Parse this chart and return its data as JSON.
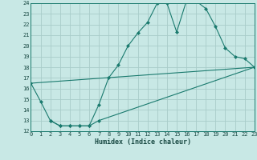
{
  "xlabel": "Humidex (Indice chaleur)",
  "bg_color": "#c8e8e5",
  "grid_color": "#a8ccc9",
  "line_color": "#1a7a6e",
  "spine_color": "#1a7a6e",
  "xlim": [
    0,
    23
  ],
  "ylim": [
    12,
    24
  ],
  "yticks": [
    12,
    13,
    14,
    15,
    16,
    17,
    18,
    19,
    20,
    21,
    22,
    23,
    24
  ],
  "xticks": [
    0,
    1,
    2,
    3,
    4,
    5,
    6,
    7,
    8,
    9,
    10,
    11,
    12,
    13,
    14,
    15,
    16,
    17,
    18,
    19,
    20,
    21,
    22,
    23
  ],
  "curve1_x": [
    0,
    1,
    2,
    3,
    4,
    5,
    6,
    7,
    8,
    9,
    10,
    11,
    12,
    13,
    14,
    15,
    16,
    17,
    18,
    19,
    20,
    21,
    22,
    23
  ],
  "curve1_y": [
    16.5,
    14.8,
    13.0,
    12.5,
    12.5,
    12.5,
    12.5,
    14.5,
    17.0,
    18.2,
    20.0,
    21.2,
    22.2,
    24.0,
    24.0,
    21.3,
    24.2,
    24.2,
    23.5,
    21.8,
    19.8,
    19.0,
    18.8,
    18.0
  ],
  "curve2_x": [
    2,
    3,
    4,
    5,
    6,
    7,
    23
  ],
  "curve2_y": [
    13.0,
    12.5,
    12.5,
    12.5,
    12.5,
    13.0,
    18.0
  ],
  "curve3_x": [
    0,
    23
  ],
  "curve3_y": [
    16.5,
    18.0
  ],
  "tick_fontsize": 5.0,
  "xlabel_fontsize": 6.0,
  "marker": "D",
  "markersize": 2.0,
  "linewidth": 0.8
}
